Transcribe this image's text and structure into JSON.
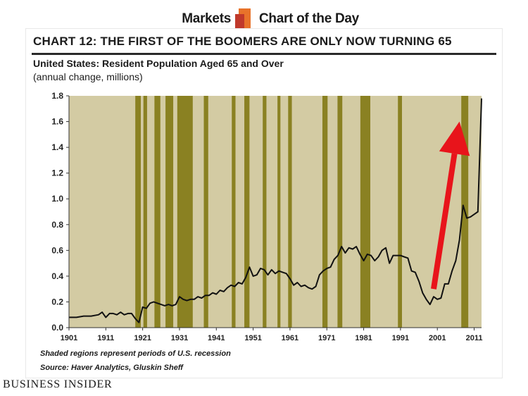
{
  "header": {
    "left_label": "Markets",
    "right_label": "Chart of the Day",
    "logo_icon": "business-insider-bar-logo-icon",
    "logo_colors": [
      "#c0392b",
      "#e8722a"
    ]
  },
  "footer": {
    "brand": "BUSINESS INSIDER"
  },
  "chart_data": {
    "type": "line",
    "title": "CHART 12: THE FIRST OF THE BOOMERS ARE ONLY NOW TURNING 65",
    "subtitle": "United States: Resident Population Aged 65 and Over",
    "subtitle2": "(annual change, millions)",
    "xlabel": "",
    "ylabel": "",
    "xlim": [
      1901,
      2013
    ],
    "ylim": [
      0,
      1.8
    ],
    "x_ticks": [
      1901,
      1911,
      1921,
      1931,
      1941,
      1951,
      1961,
      1971,
      1981,
      1991,
      2001,
      2011
    ],
    "y_ticks": [
      "0.0",
      "0.2",
      "0.4",
      "0.6",
      "0.8",
      "1.0",
      "1.2",
      "1.4",
      "1.6",
      "1.8"
    ],
    "grid": false,
    "legend": "none",
    "colors": {
      "background": "#d3cba3",
      "recession": "#8a8122",
      "line": "#111111",
      "arrow": "#e8141b"
    },
    "recessions": [
      [
        1919,
        1920.5
      ],
      [
        1921.2,
        1922.2
      ],
      [
        1924.2,
        1925.8
      ],
      [
        1927.2,
        1929.3
      ],
      [
        1930.4,
        1934.6
      ],
      [
        1937.6,
        1938.8
      ],
      [
        1945.2,
        1946.2
      ],
      [
        1948.6,
        1950
      ],
      [
        1953.6,
        1954.6
      ],
      [
        1957.6,
        1958.4
      ],
      [
        1960.5,
        1961.5
      ],
      [
        1969.8,
        1971.2
      ],
      [
        1973.9,
        1975.2
      ],
      [
        1980.1,
        1982.8
      ],
      [
        1990.3,
        1991.4
      ],
      [
        2007.5,
        2009.4
      ]
    ],
    "series": [
      {
        "x": [
          1901,
          1903,
          1905,
          1907,
          1909,
          1910,
          1911,
          1912,
          1913,
          1914,
          1915,
          1916,
          1917,
          1918,
          1919,
          1920,
          1921,
          1922,
          1923,
          1924,
          1925,
          1926,
          1927,
          1928,
          1929,
          1930,
          1931,
          1932,
          1933,
          1934,
          1935,
          1936,
          1937,
          1938,
          1939,
          1940,
          1941,
          1942,
          1943,
          1944,
          1945,
          1946,
          1947,
          1948,
          1949,
          1950,
          1951,
          1952,
          1953,
          1954,
          1955,
          1956,
          1957,
          1958,
          1959,
          1960,
          1961,
          1962,
          1963,
          1964,
          1965,
          1966,
          1967,
          1968,
          1969,
          1970,
          1971,
          1972,
          1973,
          1974,
          1975,
          1976,
          1977,
          1978,
          1979,
          1980,
          1981,
          1982,
          1983,
          1984,
          1985,
          1986,
          1987,
          1988,
          1989,
          1990,
          1991,
          1992,
          1993,
          1994,
          1995,
          1996,
          1997,
          1998,
          1999,
          2000,
          2001,
          2002,
          2003,
          2004,
          2005,
          2006,
          2007,
          2008,
          2009,
          2010,
          2011,
          2012,
          2013
        ],
        "values": [
          0.08,
          0.08,
          0.09,
          0.09,
          0.1,
          0.12,
          0.08,
          0.11,
          0.11,
          0.1,
          0.12,
          0.1,
          0.11,
          0.11,
          0.07,
          0.04,
          0.16,
          0.15,
          0.19,
          0.2,
          0.19,
          0.18,
          0.17,
          0.18,
          0.17,
          0.18,
          0.24,
          0.22,
          0.21,
          0.22,
          0.22,
          0.24,
          0.23,
          0.25,
          0.25,
          0.27,
          0.26,
          0.29,
          0.28,
          0.31,
          0.33,
          0.32,
          0.35,
          0.34,
          0.39,
          0.47,
          0.4,
          0.41,
          0.46,
          0.45,
          0.41,
          0.45,
          0.42,
          0.44,
          0.43,
          0.42,
          0.38,
          0.33,
          0.35,
          0.32,
          0.33,
          0.31,
          0.3,
          0.32,
          0.41,
          0.44,
          0.46,
          0.47,
          0.53,
          0.56,
          0.63,
          0.58,
          0.62,
          0.61,
          0.63,
          0.57,
          0.52,
          0.57,
          0.56,
          0.52,
          0.55,
          0.6,
          0.62,
          0.5,
          0.56,
          0.56,
          0.56,
          0.55,
          0.54,
          0.44,
          0.43,
          0.36,
          0.27,
          0.22,
          0.18,
          0.24,
          0.22,
          0.23,
          0.34,
          0.34,
          0.44,
          0.52,
          0.68,
          0.95,
          0.85,
          0.86,
          0.88,
          0.9,
          1.78
        ]
      }
    ],
    "annotations": {
      "arrow_from": [
        2000,
        0.3
      ],
      "arrow_to": [
        2007,
        1.6
      ],
      "note": "Shaded regions represent periods of U.S. recession",
      "source": "Source: Haver Analytics, Gluskin Sheff"
    }
  }
}
